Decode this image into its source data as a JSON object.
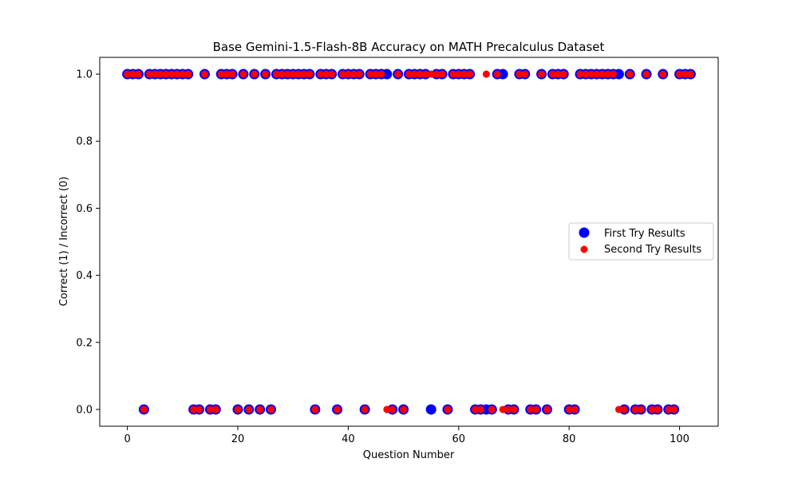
{
  "chart_data": {
    "type": "scatter",
    "title": "Base Gemini-1.5-Flash-8B Accuracy on MATH Precalculus Dataset",
    "xlabel": "Question Number",
    "ylabel": "Correct (1) / Incorrect (0)",
    "xlim": [
      -5,
      107
    ],
    "ylim": [
      -0.05,
      1.05
    ],
    "xticks": [
      0,
      20,
      40,
      60,
      80,
      100
    ],
    "yticks": [
      0.0,
      0.2,
      0.4,
      0.6,
      0.8,
      1.0
    ],
    "xtick_labels": [
      "0",
      "20",
      "40",
      "60",
      "80",
      "100"
    ],
    "ytick_labels": [
      "0.0",
      "0.2",
      "0.4",
      "0.6",
      "0.8",
      "1.0"
    ],
    "grid": false,
    "legend_position": "center-right",
    "series": [
      {
        "name": "First Try Results",
        "color": "#0000ff",
        "marker": "large-circle",
        "x": [
          0,
          1,
          2,
          3,
          4,
          5,
          6,
          7,
          8,
          9,
          10,
          11,
          12,
          13,
          14,
          15,
          16,
          17,
          18,
          19,
          20,
          21,
          22,
          23,
          24,
          25,
          26,
          27,
          28,
          29,
          30,
          31,
          32,
          33,
          34,
          35,
          36,
          37,
          38,
          39,
          40,
          41,
          42,
          43,
          44,
          45,
          46,
          47,
          48,
          49,
          50,
          51,
          52,
          53,
          54,
          55,
          56,
          57,
          58,
          59,
          60,
          61,
          62,
          63,
          64,
          65,
          66,
          67,
          68,
          69,
          70,
          71,
          72,
          73,
          74,
          75,
          76,
          77,
          78,
          79,
          80,
          81,
          82,
          83,
          84,
          85,
          86,
          87,
          88,
          89,
          90,
          91,
          92,
          93,
          94,
          95,
          96,
          97,
          98,
          99,
          100,
          101,
          102
        ],
        "y": [
          1,
          1,
          1,
          0,
          1,
          1,
          1,
          1,
          1,
          1,
          1,
          1,
          0,
          0,
          1,
          0,
          0,
          1,
          1,
          1,
          0,
          1,
          0,
          1,
          0,
          1,
          0,
          1,
          1,
          1,
          1,
          1,
          1,
          1,
          0,
          1,
          1,
          1,
          0,
          1,
          1,
          1,
          1,
          0,
          1,
          1,
          1,
          1,
          0,
          1,
          0,
          1,
          1,
          1,
          1,
          0,
          1,
          1,
          0,
          1,
          1,
          1,
          1,
          0,
          0,
          0,
          0,
          1,
          1,
          0,
          0,
          1,
          1,
          0,
          0,
          1,
          0,
          1,
          1,
          1,
          0,
          0,
          1,
          1,
          1,
          1,
          1,
          1,
          1,
          1,
          0,
          1,
          0,
          0,
          1,
          0,
          0,
          1,
          0,
          0,
          1,
          1,
          1
        ]
      },
      {
        "name": "Second Try Results",
        "color": "#ff0000",
        "marker": "small-circle",
        "x": [
          0,
          1,
          2,
          3,
          4,
          5,
          6,
          7,
          8,
          9,
          10,
          11,
          12,
          13,
          14,
          15,
          16,
          17,
          18,
          19,
          20,
          21,
          22,
          23,
          24,
          25,
          26,
          27,
          28,
          29,
          30,
          31,
          32,
          33,
          34,
          35,
          36,
          37,
          38,
          39,
          40,
          41,
          42,
          43,
          44,
          45,
          46,
          47,
          48,
          49,
          50,
          51,
          52,
          53,
          54,
          55,
          56,
          57,
          58,
          59,
          60,
          61,
          62,
          63,
          64,
          65,
          66,
          67,
          68,
          69,
          70,
          71,
          72,
          73,
          74,
          75,
          76,
          77,
          78,
          79,
          80,
          81,
          82,
          83,
          84,
          85,
          86,
          87,
          88,
          89,
          90,
          91,
          92,
          93,
          94,
          95,
          96,
          97,
          98,
          99,
          100,
          101,
          102
        ],
        "y": [
          1,
          1,
          1,
          0,
          1,
          1,
          1,
          1,
          1,
          1,
          1,
          1,
          0,
          0,
          1,
          0,
          0,
          1,
          1,
          1,
          0,
          1,
          0,
          1,
          0,
          1,
          0,
          1,
          1,
          1,
          1,
          1,
          1,
          1,
          0,
          1,
          1,
          1,
          0,
          1,
          1,
          1,
          1,
          0,
          1,
          1,
          1,
          0,
          0,
          1,
          0,
          1,
          1,
          1,
          1,
          1,
          1,
          1,
          0,
          1,
          1,
          1,
          1,
          0,
          0,
          1,
          0,
          1,
          0,
          0,
          0,
          1,
          1,
          0,
          0,
          1,
          0,
          1,
          1,
          1,
          0,
          0,
          1,
          1,
          1,
          1,
          1,
          1,
          1,
          0,
          0,
          1,
          0,
          0,
          1,
          0,
          0,
          1,
          0,
          0,
          1,
          1,
          1
        ]
      }
    ]
  }
}
